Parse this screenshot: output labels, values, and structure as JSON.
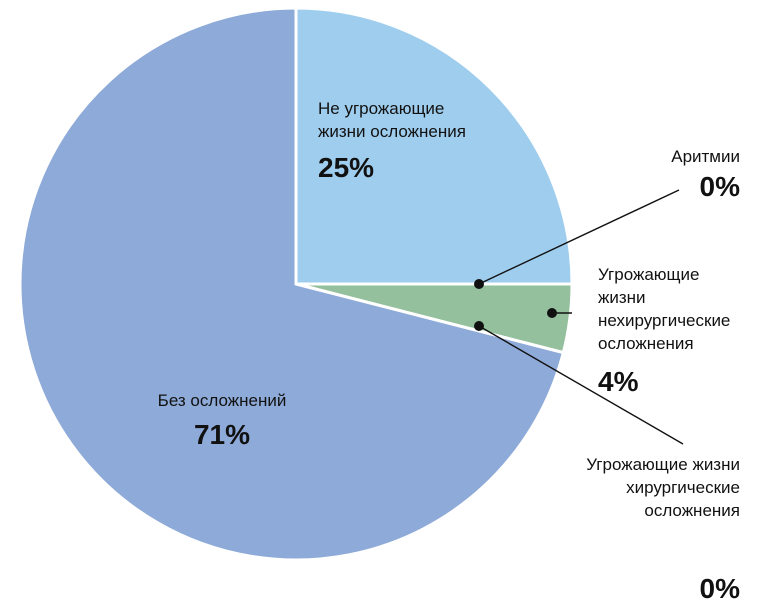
{
  "chart_data": {
    "type": "pie",
    "slices": [
      {
        "name": "Не угрожающие жизни осложнения",
        "label_lines": [
          "Не угрожающие",
          "жизни осложнения"
        ],
        "value": 25,
        "value_label": "25%",
        "color": "#9fcdee"
      },
      {
        "name": "Аритмии",
        "label_lines": [
          "Аритмии"
        ],
        "value": 0,
        "value_label": "0%",
        "color": "#9fcdee"
      },
      {
        "name": "Угрожающие жизни нехирургические осложнения",
        "label_lines": [
          "Угрожающие",
          "жизни",
          "нехирургические",
          "осложнения"
        ],
        "value": 4,
        "value_label": "4%",
        "color": "#94c09e"
      },
      {
        "name": "Угрожающие жизни хирургические осложнения",
        "label_lines": [
          "Угрожающие жизни",
          "хирургические",
          "осложнения"
        ],
        "value": 0,
        "value_label": "0%",
        "color": "#94c09e"
      },
      {
        "name": "Без осложнений",
        "label_lines": [
          "Без осложнений"
        ],
        "value": 71,
        "value_label": "71%",
        "color": "#8eaad8"
      }
    ]
  }
}
